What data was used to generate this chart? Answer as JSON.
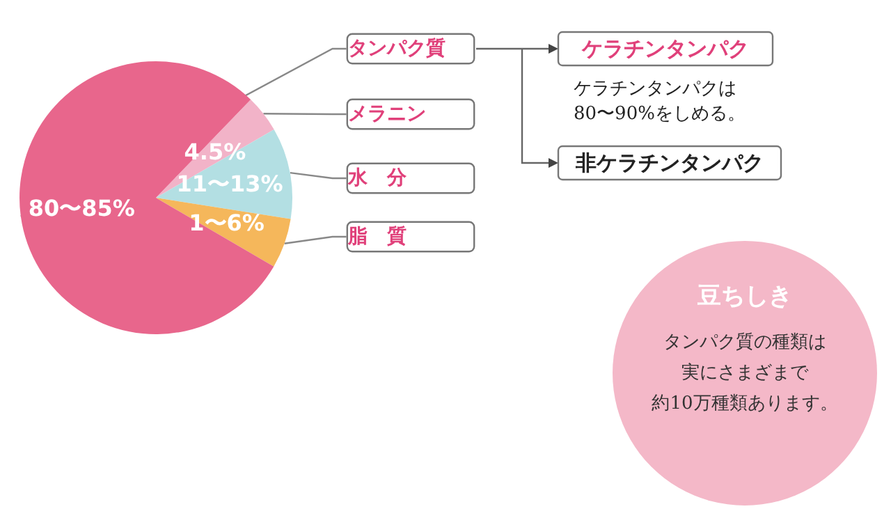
{
  "chart_data": {
    "type": "pie",
    "categories": [
      "メラニン",
      "水　分",
      "脂　質",
      "タンパク質"
    ],
    "values": [
      4.5,
      11,
      6,
      80
    ],
    "colors": [
      "#f2b3c8",
      "#b3dfe3",
      "#f5b75b",
      "#e8668c"
    ],
    "value_labels": [
      "4.5%",
      "11〜13%",
      "1〜6%",
      "80〜85%"
    ],
    "legend": false,
    "annotations": [
      "ケラチンタンパク",
      "ケラチンタンパクは",
      "80〜90%をしめる。",
      "非ケラチンタンパク",
      "豆ちしき",
      "タンパク質の種類は",
      "実にさまざまで",
      "約10万種類あります。"
    ]
  }
}
